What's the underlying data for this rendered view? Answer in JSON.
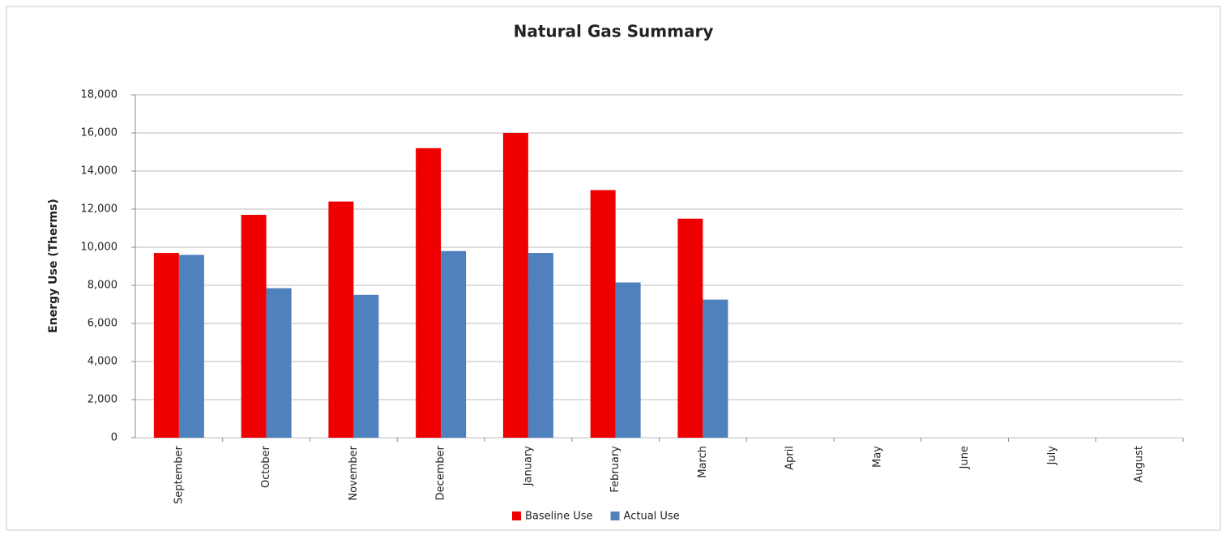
{
  "chart_data": {
    "type": "bar",
    "title": "Natural Gas Summary",
    "y_label": "Energy Use (Therms)",
    "categories": [
      "September",
      "October",
      "November",
      "December",
      "January",
      "February",
      "March",
      "April",
      "May",
      "June",
      "July",
      "August"
    ],
    "series": [
      {
        "name": "Baseline Use",
        "color": "#ee0000",
        "values": [
          9700,
          11700,
          12400,
          15200,
          16000,
          13000,
          11500,
          null,
          null,
          null,
          null,
          null
        ]
      },
      {
        "name": "Actual Use",
        "color": "#4f81bd",
        "values": [
          9600,
          7850,
          7500,
          9800,
          9700,
          8150,
          7250,
          null,
          null,
          null,
          null,
          null
        ]
      }
    ],
    "ylim": [
      0,
      18000
    ],
    "yticks": [
      0,
      {
        "value": 2000,
        "label": "2,000"
      },
      {
        "value": 4000,
        "label": "4,000"
      },
      {
        "value": 6000,
        "label": "6,000"
      },
      {
        "value": 8000,
        "label": "8,000"
      },
      {
        "value": 10000,
        "label": "10,000"
      },
      {
        "value": 12000,
        "label": "12,000"
      },
      {
        "value": 14000,
        "label": "14,000"
      },
      {
        "value": 16000,
        "label": "16,000"
      },
      {
        "value": 18000,
        "label": "18,000"
      }
    ],
    "grid": true,
    "legend": "bottom"
  }
}
